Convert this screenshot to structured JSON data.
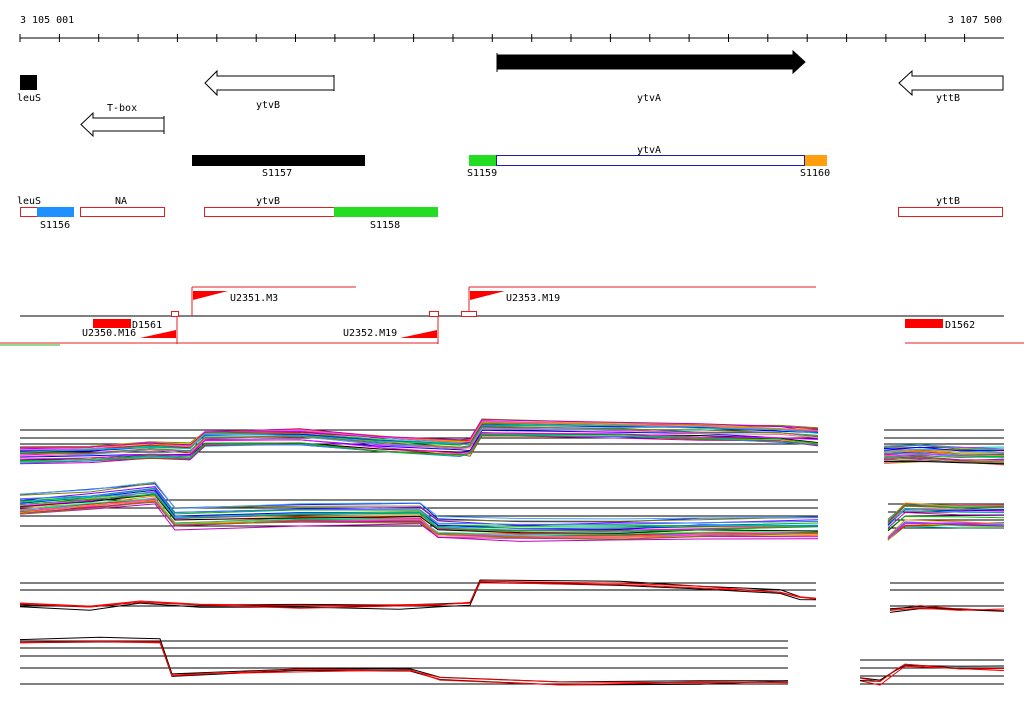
{
  "ruler": {
    "start_label": "3 105 001",
    "end_label": "3 107 500"
  },
  "genes": [
    {
      "name": "leuS",
      "strand": "+",
      "style": "filled-black"
    },
    {
      "name": "ytvB",
      "strand": "-",
      "style": "outline"
    },
    {
      "name": "T-box",
      "strand": "-",
      "style": "outline"
    },
    {
      "name": "ytvA",
      "strand": "+",
      "style": "filled-black"
    },
    {
      "name": "yttB",
      "strand": "-",
      "style": "outline"
    }
  ],
  "segments": [
    {
      "label": "S1157",
      "color": "#000000"
    },
    {
      "label": "S1159",
      "color": "#22dd22"
    },
    {
      "label": "ytvA",
      "color": "#1c1ca8"
    },
    {
      "label": "S1160",
      "color": "#ff9f10"
    }
  ],
  "transcripts": [
    {
      "label": "leuS"
    },
    {
      "label": "S1156",
      "color": "#1e90ff"
    },
    {
      "label": "NA"
    },
    {
      "label": "ytvB"
    },
    {
      "label": "S1158",
      "color": "#22dd22"
    },
    {
      "label": "yttB"
    }
  ],
  "upshifts": [
    {
      "label": "U2351.M3"
    },
    {
      "label": "U2353.M19"
    },
    {
      "label": "U2350.M16"
    },
    {
      "label": "U2352.M19"
    }
  ],
  "downshifts": [
    {
      "label": "D1561"
    },
    {
      "label": "D1562"
    }
  ],
  "colors": {
    "outline_red": "#e02020",
    "marker_red": "#ff0000",
    "ruler": "#000000"
  },
  "tracks": [
    {
      "id": "panel-1",
      "lines": "many-colored"
    },
    {
      "id": "panel-2",
      "lines": "many-colored"
    },
    {
      "id": "panel-3",
      "lines": "black-red"
    },
    {
      "id": "panel-4",
      "lines": "black-red"
    }
  ]
}
